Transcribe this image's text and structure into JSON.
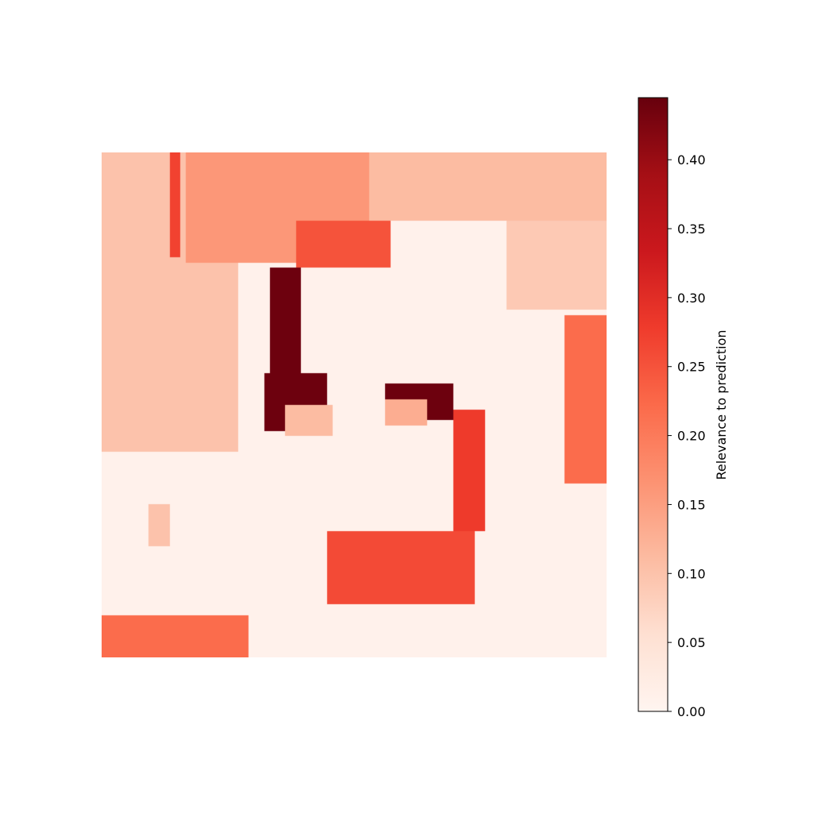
{
  "chart_data": {
    "type": "heatmap",
    "title": "",
    "xlabel": "",
    "ylabel": "",
    "axes_visible": false,
    "grid": false,
    "cmap": "Reds",
    "colorbar": {
      "label": "Relevance to prediction",
      "range": [
        0,
        0.445
      ],
      "ticks": [
        0.0,
        0.05,
        0.1,
        0.15,
        0.2,
        0.25,
        0.3,
        0.35,
        0.4
      ],
      "tick_labels": [
        "0.00",
        "0.05",
        "0.10",
        "0.15",
        "0.20",
        "0.25",
        "0.30",
        "0.35",
        "0.40"
      ],
      "placement": "right"
    },
    "grid_size": [
      96,
      96
    ],
    "background_value": 0.01,
    "regions": [
      {
        "name": "top-left-block",
        "value": 0.1,
        "rows": [
          0,
          57
        ],
        "cols": [
          0,
          26
        ]
      },
      {
        "name": "top-center-block",
        "value": 0.16,
        "rows": [
          0,
          21
        ],
        "cols": [
          16,
          53
        ]
      },
      {
        "name": "top-right-block",
        "value": 0.11,
        "rows": [
          0,
          13
        ],
        "cols": [
          51,
          96
        ]
      },
      {
        "name": "right-mid-block",
        "value": 0.09,
        "rows": [
          13,
          30
        ],
        "cols": [
          77,
          96
        ]
      },
      {
        "name": "right-hot-patch",
        "value": 0.22,
        "rows": [
          31,
          63
        ],
        "cols": [
          88,
          96
        ]
      },
      {
        "name": "left-red-stripe",
        "value": 0.27,
        "rows": [
          0,
          20
        ],
        "cols": [
          13,
          15
        ]
      },
      {
        "name": "bottom-left-bar",
        "value": 0.22,
        "rows": [
          88,
          96
        ],
        "cols": [
          0,
          28
        ]
      },
      {
        "name": "left-small-patch",
        "value": 0.1,
        "rows": [
          67,
          75
        ],
        "cols": [
          9,
          13
        ]
      },
      {
        "name": "left-eye",
        "value": 0.44,
        "rows": [
          42,
          53
        ],
        "cols": [
          31,
          43
        ]
      },
      {
        "name": "right-eye",
        "value": 0.44,
        "rows": [
          44,
          51
        ],
        "cols": [
          54,
          67
        ]
      },
      {
        "name": "left-eye-inner",
        "value": 0.11,
        "rows": [
          48,
          54
        ],
        "cols": [
          35,
          44
        ]
      },
      {
        "name": "right-eye-inner",
        "value": 0.13,
        "rows": [
          47,
          52
        ],
        "cols": [
          54,
          62
        ]
      },
      {
        "name": "glasses-arm",
        "value": 0.44,
        "rows": [
          22,
          42
        ],
        "cols": [
          32,
          38
        ]
      },
      {
        "name": "forehead-red",
        "value": 0.25,
        "rows": [
          13,
          22
        ],
        "cols": [
          37,
          55
        ]
      },
      {
        "name": "right-cheek-line",
        "value": 0.28,
        "rows": [
          49,
          72
        ],
        "cols": [
          67,
          73
        ]
      },
      {
        "name": "chin-line",
        "value": 0.26,
        "rows": [
          72,
          86
        ],
        "cols": [
          43,
          71
        ]
      }
    ]
  }
}
